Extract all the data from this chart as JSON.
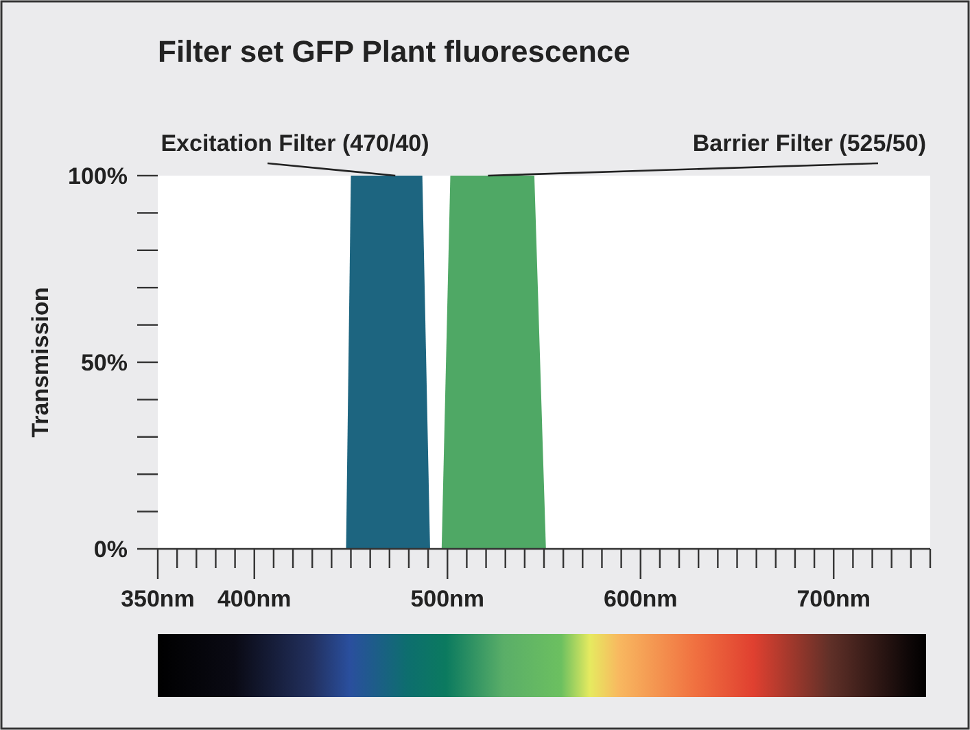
{
  "chart_data": {
    "type": "area",
    "title": "Filter set GFP Plant fluorescence",
    "ylabel": "Transmission",
    "xlim": [
      350,
      750
    ],
    "xticks": [
      {
        "value": 350,
        "label": "350nm"
      },
      {
        "value": 360,
        "label": null
      },
      {
        "value": 370,
        "label": null
      },
      {
        "value": 380,
        "label": null
      },
      {
        "value": 390,
        "label": null
      },
      {
        "value": 400,
        "label": "400nm"
      },
      {
        "value": 410,
        "label": null
      },
      {
        "value": 420,
        "label": null
      },
      {
        "value": 430,
        "label": null
      },
      {
        "value": 440,
        "label": null
      },
      {
        "value": 450,
        "label": null
      },
      {
        "value": 460,
        "label": null
      },
      {
        "value": 470,
        "label": null
      },
      {
        "value": 480,
        "label": null
      },
      {
        "value": 490,
        "label": null
      },
      {
        "value": 500,
        "label": "500nm"
      },
      {
        "value": 510,
        "label": null
      },
      {
        "value": 520,
        "label": null
      },
      {
        "value": 530,
        "label": null
      },
      {
        "value": 540,
        "label": null
      },
      {
        "value": 550,
        "label": null
      },
      {
        "value": 560,
        "label": null
      },
      {
        "value": 570,
        "label": null
      },
      {
        "value": 580,
        "label": null
      },
      {
        "value": 590,
        "label": null
      },
      {
        "value": 600,
        "label": "600nm"
      },
      {
        "value": 610,
        "label": null
      },
      {
        "value": 620,
        "label": null
      },
      {
        "value": 630,
        "label": null
      },
      {
        "value": 640,
        "label": null
      },
      {
        "value": 650,
        "label": null
      },
      {
        "value": 660,
        "label": null
      },
      {
        "value": 670,
        "label": null
      },
      {
        "value": 680,
        "label": null
      },
      {
        "value": 690,
        "label": null
      },
      {
        "value": 700,
        "label": "700nm"
      },
      {
        "value": 710,
        "label": null
      },
      {
        "value": 720,
        "label": null
      },
      {
        "value": 730,
        "label": null
      },
      {
        "value": 740,
        "label": null
      },
      {
        "value": 750,
        "label": null
      }
    ],
    "ylim": [
      0,
      100
    ],
    "yticks": [
      {
        "value": 0,
        "label": "0%"
      },
      {
        "value": 10,
        "label": null
      },
      {
        "value": 20,
        "label": null
      },
      {
        "value": 30,
        "label": null
      },
      {
        "value": 40,
        "label": null
      },
      {
        "value": 50,
        "label": "50%"
      },
      {
        "value": 60,
        "label": null
      },
      {
        "value": 70,
        "label": null
      },
      {
        "value": 80,
        "label": null
      },
      {
        "value": 90,
        "label": null
      },
      {
        "value": 100,
        "label": "100%"
      }
    ],
    "series": [
      {
        "color": "#1d6580",
        "x": [
          447.5,
          450,
          487,
          491
        ],
        "values": [
          0,
          100,
          100,
          0
        ]
      },
      {
        "color": "#4fa865",
        "x": [
          497,
          501.5,
          545,
          551
        ],
        "values": [
          0,
          100,
          100,
          0
        ]
      }
    ],
    "annotations": [
      {
        "text": "Excitation Filter (470/40)",
        "x": 473,
        "y": 100
      },
      {
        "text": "Barrier Filter (525/50)",
        "x": 521,
        "y": 100
      }
    ],
    "grid": false
  }
}
